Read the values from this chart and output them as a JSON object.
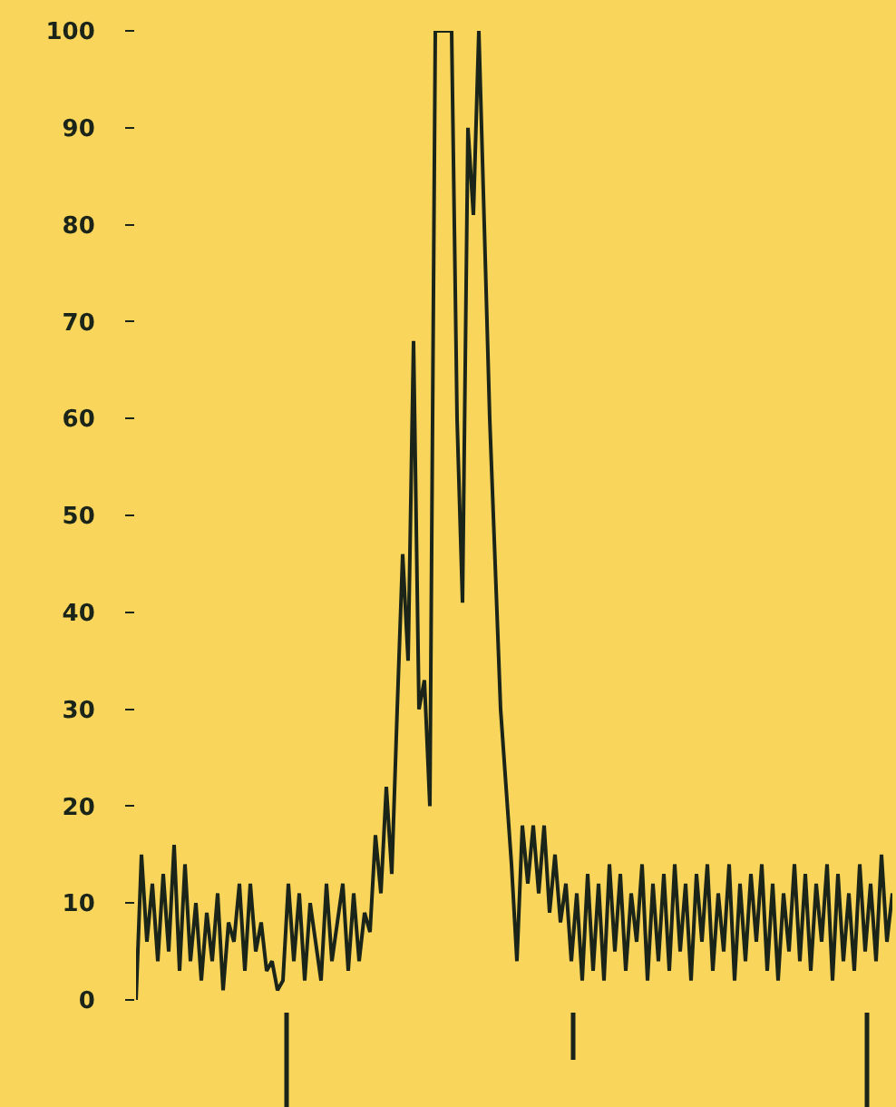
{
  "chart_data": {
    "type": "line",
    "color": "#1b2418",
    "relative": false,
    "categories": [
      null,
      null,
      null,
      null,
      null,
      null,
      null,
      null,
      null,
      null,
      null,
      null,
      null,
      null,
      null,
      null,
      null,
      null,
      null,
      null,
      null,
      null,
      null,
      null,
      null,
      null,
      null,
      null,
      null,
      null,
      null,
      null,
      null,
      null,
      null,
      null,
      null,
      null,
      null,
      null,
      null,
      null,
      null,
      null,
      null,
      null,
      null,
      null,
      null,
      null,
      null,
      null,
      null,
      null,
      null,
      null,
      null,
      null,
      null,
      null,
      null,
      null,
      null,
      null,
      null,
      null,
      null,
      null,
      null,
      null,
      null,
      null,
      null,
      null,
      null,
      null,
      null,
      null,
      null,
      null,
      null,
      null,
      null,
      null,
      null,
      null,
      null,
      null,
      null,
      null,
      null,
      null,
      null,
      null,
      null,
      null,
      null,
      null,
      null,
      null,
      null,
      null,
      null,
      null,
      null,
      null,
      null,
      null,
      null,
      null,
      null,
      null,
      null,
      null,
      null,
      null,
      null,
      null,
      null,
      null,
      null,
      null,
      null,
      null,
      null,
      null,
      null,
      null,
      null,
      null,
      null,
      null,
      null,
      null,
      null,
      null,
      null,
      null,
      null,
      null
    ],
    "values": [
      0,
      15,
      6,
      12,
      4,
      13,
      5,
      16,
      3,
      14,
      4,
      10,
      2,
      9,
      4,
      11,
      1,
      8,
      6,
      12,
      3,
      12,
      5,
      8,
      3,
      4,
      1,
      2,
      12,
      4,
      11,
      2,
      10,
      6,
      2,
      12,
      4,
      8,
      12,
      3,
      11,
      4,
      9,
      7,
      17,
      11,
      22,
      13,
      30,
      46,
      35,
      68,
      30,
      33,
      20,
      100,
      100,
      100,
      100,
      60,
      41,
      90,
      81,
      100,
      80,
      60,
      45,
      30,
      22,
      14,
      4,
      18,
      12,
      18,
      11,
      18,
      9,
      15,
      8,
      12,
      4,
      11,
      2,
      13,
      3,
      12,
      2,
      14,
      5,
      13,
      3,
      11,
      6,
      14,
      2,
      12,
      4,
      13,
      3,
      14,
      5,
      12,
      2,
      13,
      6,
      14,
      3,
      11,
      5,
      14,
      2,
      12,
      4,
      13,
      6,
      14,
      3,
      12,
      2,
      11,
      5,
      14,
      4,
      13,
      3,
      12,
      6,
      14,
      2,
      13,
      4,
      11,
      3,
      14,
      5,
      12,
      4,
      15,
      6,
      11
    ],
    "ylim": [
      0,
      100
    ],
    "yticks": [
      0,
      10,
      20,
      30,
      40,
      50,
      60,
      70,
      80,
      90,
      100
    ],
    "grid": false,
    "line_style": "solid",
    "marker": "none"
  }
}
